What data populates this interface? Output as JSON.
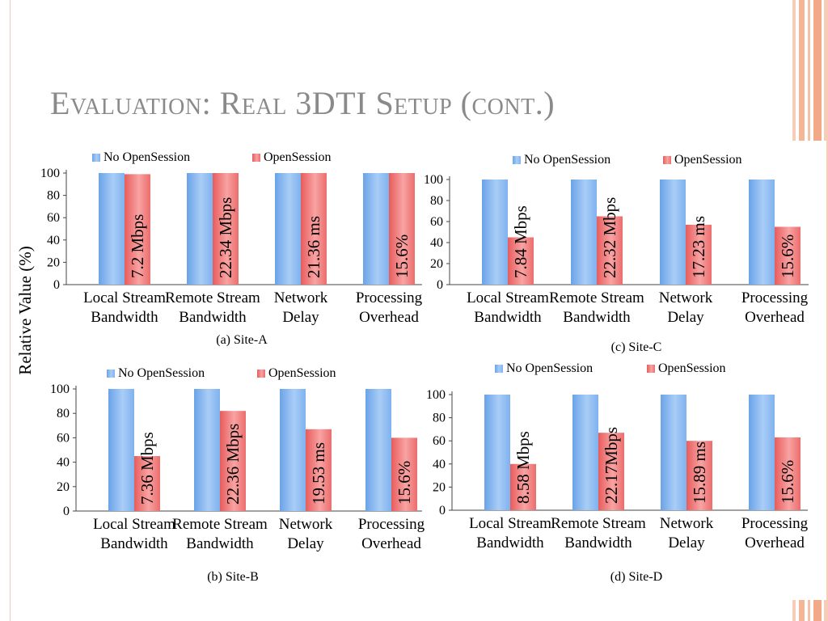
{
  "slide": {
    "title": "Evaluation: Real 3DTI Setup (cont.)"
  },
  "figure": {
    "shared_ylabel": "Relative Value (%)",
    "legend": [
      "No OpenSession",
      "OpenSession"
    ],
    "categories": [
      [
        "Local Stream",
        "Bandwidth"
      ],
      [
        "Remote Stream",
        "Bandwidth"
      ],
      [
        "Network",
        "Delay"
      ],
      [
        "Processing",
        "Overhead"
      ]
    ]
  },
  "colors": {
    "no_opensession": "#86b8f0",
    "opensession": "#f07575",
    "stripe": "#f4b695",
    "title": "#8a8a8a"
  },
  "chart_data": [
    {
      "type": "bar",
      "caption": "(a) Site-A",
      "categories": [
        "Local Stream Bandwidth",
        "Remote Stream Bandwidth",
        "Network Delay",
        "Processing Overhead"
      ],
      "ylim": [
        0,
        100
      ],
      "yticks": [
        0,
        20,
        40,
        60,
        80,
        100
      ],
      "ylabel": "Relative Value (%)",
      "series": [
        {
          "name": "No OpenSession",
          "values": [
            100,
            100,
            100,
            100
          ]
        },
        {
          "name": "OpenSession",
          "values": [
            99,
            100,
            100,
            100
          ]
        }
      ],
      "bar_labels": [
        "7.2 Mbps",
        "22.34 Mbps",
        "21.36 ms",
        "15.6%"
      ]
    },
    {
      "type": "bar",
      "caption": "(c) Site-C",
      "categories": [
        "Local Stream Bandwidth",
        "Remote Stream Bandwidth",
        "Network Delay",
        "Processing Overhead"
      ],
      "ylim": [
        0,
        100
      ],
      "yticks": [
        0,
        20,
        40,
        60,
        80,
        100
      ],
      "series": [
        {
          "name": "No OpenSession",
          "values": [
            100,
            100,
            100,
            100
          ]
        },
        {
          "name": "OpenSession",
          "values": [
            45,
            65,
            57,
            55
          ]
        }
      ],
      "bar_labels": [
        "7.84 Mbps",
        "22.32 Mbps",
        "17.23 ms",
        "15.6%"
      ]
    },
    {
      "type": "bar",
      "caption": "(b) Site-B",
      "categories": [
        "Local Stream Bandwidth",
        "Remote Stream Bandwidth",
        "Network Delay",
        "Processing Overhead"
      ],
      "ylim": [
        0,
        100
      ],
      "yticks": [
        0,
        20,
        40,
        60,
        80,
        100
      ],
      "series": [
        {
          "name": "No OpenSession",
          "values": [
            100,
            100,
            100,
            100
          ]
        },
        {
          "name": "OpenSession",
          "values": [
            45,
            82,
            67,
            60
          ]
        }
      ],
      "bar_labels": [
        "7.36 Mbps",
        "22.36 Mbps",
        "19.53 ms",
        "15.6%"
      ]
    },
    {
      "type": "bar",
      "caption": "(d) Site-D",
      "categories": [
        "Local Stream Bandwidth",
        "Remote Stream Bandwidth",
        "Network Delay",
        "Processing Overhead"
      ],
      "ylim": [
        0,
        100
      ],
      "yticks": [
        0,
        20,
        40,
        60,
        80,
        100
      ],
      "series": [
        {
          "name": "No OpenSession",
          "values": [
            100,
            100,
            100,
            100
          ]
        },
        {
          "name": "OpenSession",
          "values": [
            40,
            67,
            60,
            63
          ]
        }
      ],
      "bar_labels": [
        "8.58 Mbps",
        "22.17Mbps",
        "15.89 ms",
        "15.6%"
      ]
    }
  ]
}
